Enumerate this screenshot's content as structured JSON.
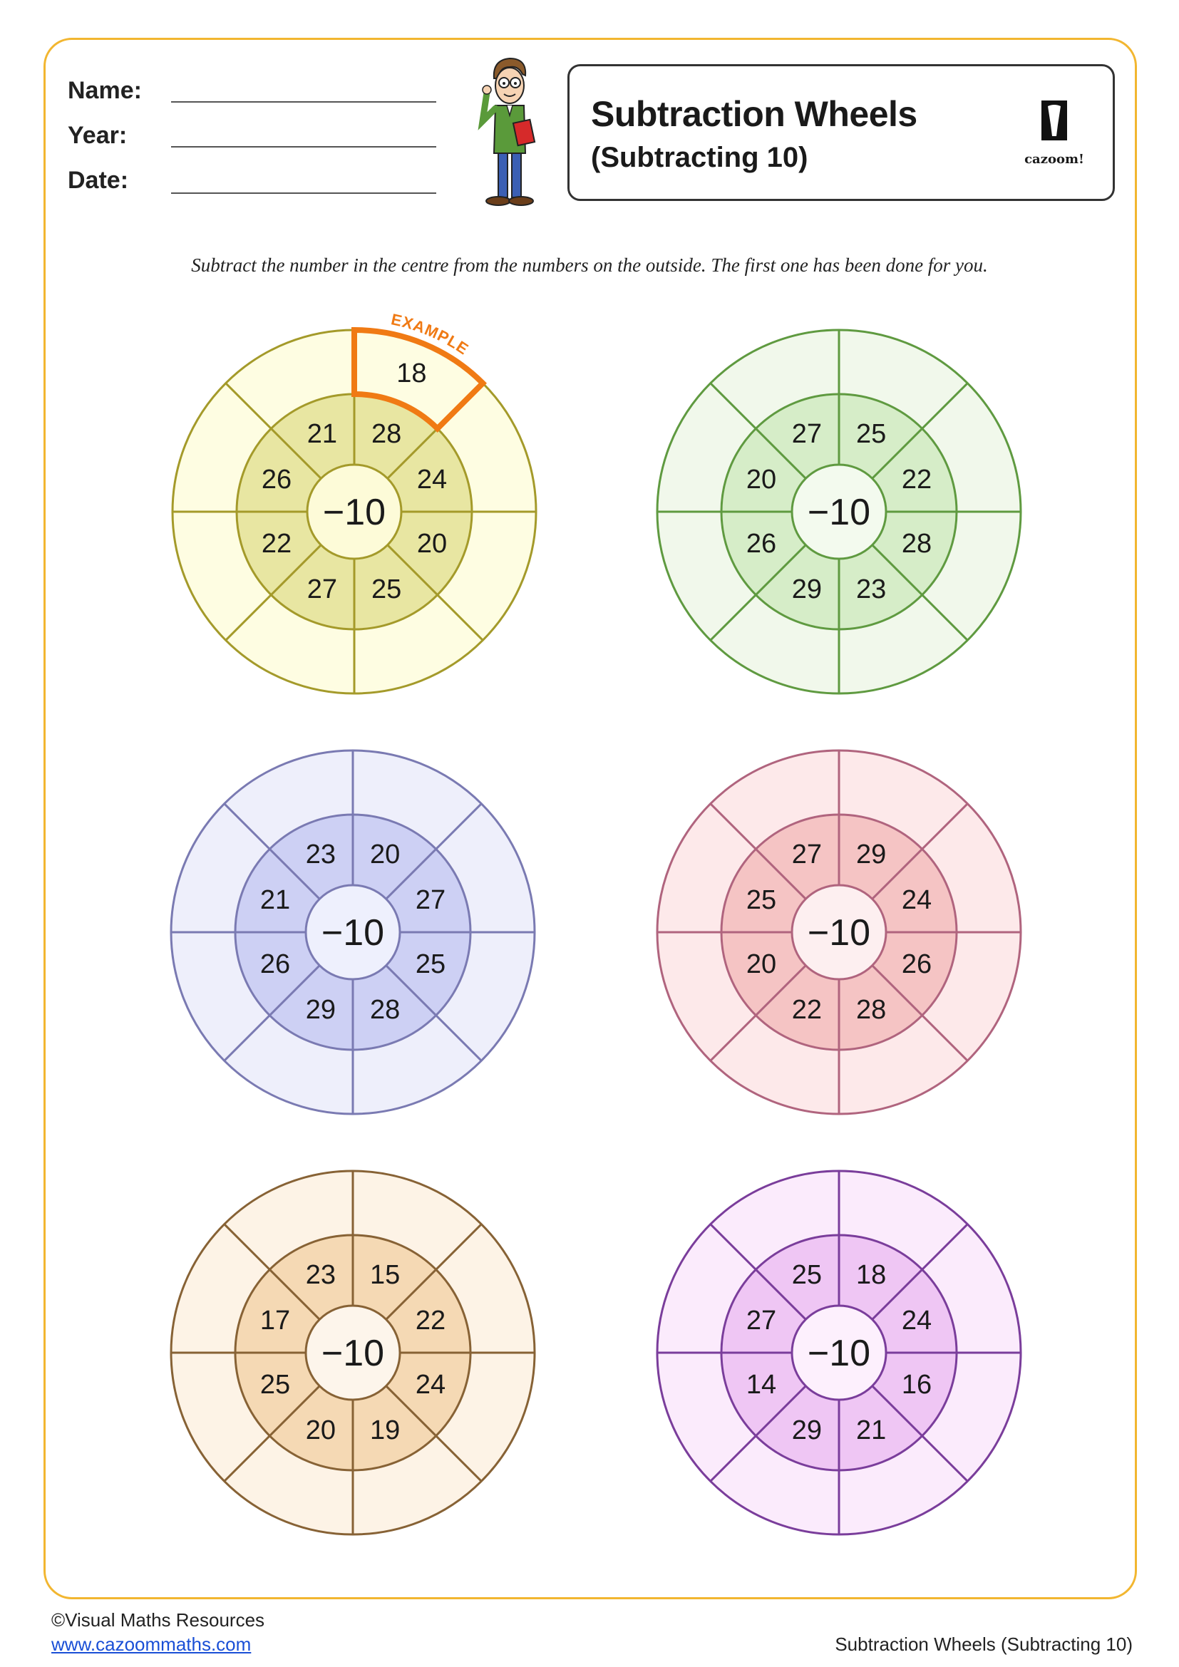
{
  "header": {
    "name_label": "Name:",
    "year_label": "Year:",
    "date_label": "Date:",
    "title": "Subtraction Wheels",
    "subtitle": "(Subtracting 10)",
    "logo_text": "cazoom!"
  },
  "instructions": "Subtract the number in the centre from the numbers on the outside. The first one has been done for you.",
  "example_label": "EXAMPLE",
  "wheels": [
    {
      "center": "−10",
      "inner": [
        "28",
        "24",
        "20",
        "25",
        "27",
        "22",
        "26",
        "21"
      ],
      "outer": [
        "18",
        "",
        "",
        "",
        "",
        "",
        "",
        ""
      ],
      "colors": {
        "stroke": "#a49a2a",
        "outer_fill": "#fefde2",
        "inner_fill": "#e8e6a2",
        "center_fill": "#fdfbd8"
      },
      "example": true
    },
    {
      "center": "−10",
      "inner": [
        "25",
        "22",
        "28",
        "23",
        "29",
        "26",
        "20",
        "27"
      ],
      "outer": [
        "",
        "",
        "",
        "",
        "",
        "",
        "",
        ""
      ],
      "colors": {
        "stroke": "#5f9a40",
        "outer_fill": "#f1f8eb",
        "inner_fill": "#d6edc8",
        "center_fill": "#f3faee"
      },
      "example": false
    },
    {
      "center": "−10",
      "inner": [
        "20",
        "27",
        "25",
        "28",
        "29",
        "26",
        "21",
        "23"
      ],
      "outer": [
        "",
        "",
        "",
        "",
        "",
        "",
        "",
        ""
      ],
      "colors": {
        "stroke": "#7a7ab2",
        "outer_fill": "#eeeffb",
        "inner_fill": "#cdd0f4",
        "center_fill": "#eef0fd"
      },
      "example": false
    },
    {
      "center": "−10",
      "inner": [
        "29",
        "24",
        "26",
        "28",
        "22",
        "20",
        "25",
        "27"
      ],
      "outer": [
        "",
        "",
        "",
        "",
        "",
        "",
        "",
        ""
      ],
      "colors": {
        "stroke": "#b0647e",
        "outer_fill": "#fde9ea",
        "inner_fill": "#f5c4c4",
        "center_fill": "#fdeff0"
      },
      "example": false
    },
    {
      "center": "−10",
      "inner": [
        "15",
        "22",
        "24",
        "19",
        "20",
        "25",
        "17",
        "23"
      ],
      "outer": [
        "",
        "",
        "",
        "",
        "",
        "",
        "",
        ""
      ],
      "colors": {
        "stroke": "#876235",
        "outer_fill": "#fdf3e6",
        "inner_fill": "#f5d9b4",
        "center_fill": "#fdf5eb"
      },
      "example": false
    },
    {
      "center": "−10",
      "inner": [
        "18",
        "24",
        "16",
        "21",
        "29",
        "14",
        "27",
        "25"
      ],
      "outer": [
        "",
        "",
        "",
        "",
        "",
        "",
        "",
        ""
      ],
      "colors": {
        "stroke": "#7a3d9b",
        "outer_fill": "#fbebfc",
        "inner_fill": "#efc6f4",
        "center_fill": "#fdf0fd"
      },
      "example": false
    }
  ],
  "footer": {
    "copyright": "©Visual Maths Resources",
    "website": "www.cazoommaths.com",
    "page_title": "Subtraction Wheels (Subtracting 10)"
  },
  "colors": {
    "frame": "#f2b630",
    "example": "#f07a14",
    "link": "#1a4fd6"
  }
}
